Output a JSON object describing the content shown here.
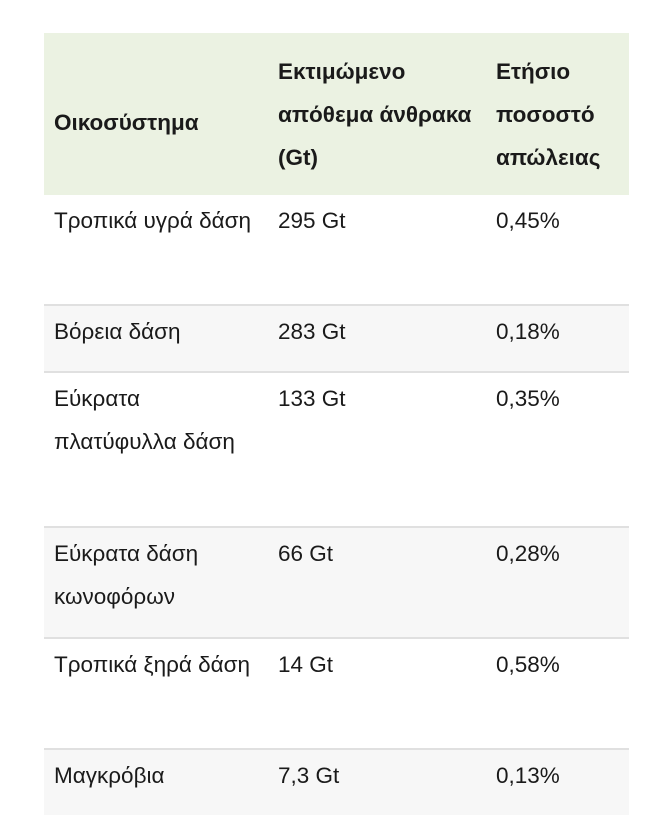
{
  "table": {
    "headers": [
      "Οικοσύστημα",
      "Εκτιμώμενο απόθεμα άνθρακα (Gt)",
      "Ετήσιο ποσοστό απώλειας"
    ],
    "rows": [
      [
        "Τροπικά υγρά δάση",
        "295 Gt",
        "0,45%"
      ],
      [
        "Βόρεια δάση",
        "283 Gt",
        "0,18%"
      ],
      [
        "Εύκρατα πλατύφυλλα δάση",
        "133 Gt",
        "0,35%"
      ],
      [
        "Εύκρατα δάση κωνοφόρων",
        "66 Gt",
        "0,28%"
      ],
      [
        "Τροπικά ξηρά δάση",
        "14 Gt",
        "0,58%"
      ],
      [
        "Μαγκρόβια",
        "7,3 Gt",
        "0,13%"
      ]
    ]
  },
  "colors": {
    "header_bg": "#ebf2e2",
    "row_alt_bg": "#f7f7f7",
    "row_border": "#e0e0e0",
    "text": "#1a1a1a"
  }
}
